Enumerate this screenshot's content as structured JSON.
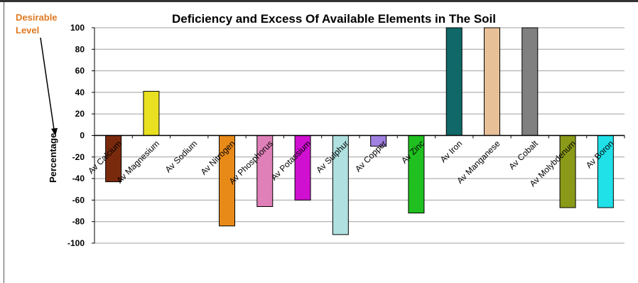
{
  "chart_data": {
    "type": "bar",
    "title": "Deficiency and Excess Of Available Elements in The Soil",
    "ylabel": "Percentage",
    "xlabel": "",
    "annotation": "Desirable\nLevel",
    "ylim": [
      -100,
      100
    ],
    "yticks": [
      100,
      80,
      60,
      40,
      20,
      0,
      -20,
      -40,
      -60,
      -80,
      -100
    ],
    "grid": true,
    "categories": [
      "Av Calcium",
      "Av Magnesium",
      "Av Sodium",
      "Av Nitrogen",
      "Av Phosphorus",
      "Av Potassium",
      "Av Sulphur",
      "Av Copper",
      "Av Zinc",
      "Av Iron",
      "Av Manganese",
      "Av Cobalt",
      "Av Molybdenum",
      "Av Boron"
    ],
    "values": [
      -43,
      41,
      0,
      -84,
      -66,
      -60,
      -92,
      -10,
      -72,
      100,
      100,
      100,
      -67,
      -67
    ],
    "colors": [
      "#7a2a0c",
      "#e8e020",
      "#c0c0c0",
      "#e88a18",
      "#e080b8",
      "#d010d0",
      "#b0e0e0",
      "#a080e0",
      "#20c020",
      "#106868",
      "#e8c098",
      "#808080",
      "#8a9a18",
      "#20e0e8"
    ]
  }
}
